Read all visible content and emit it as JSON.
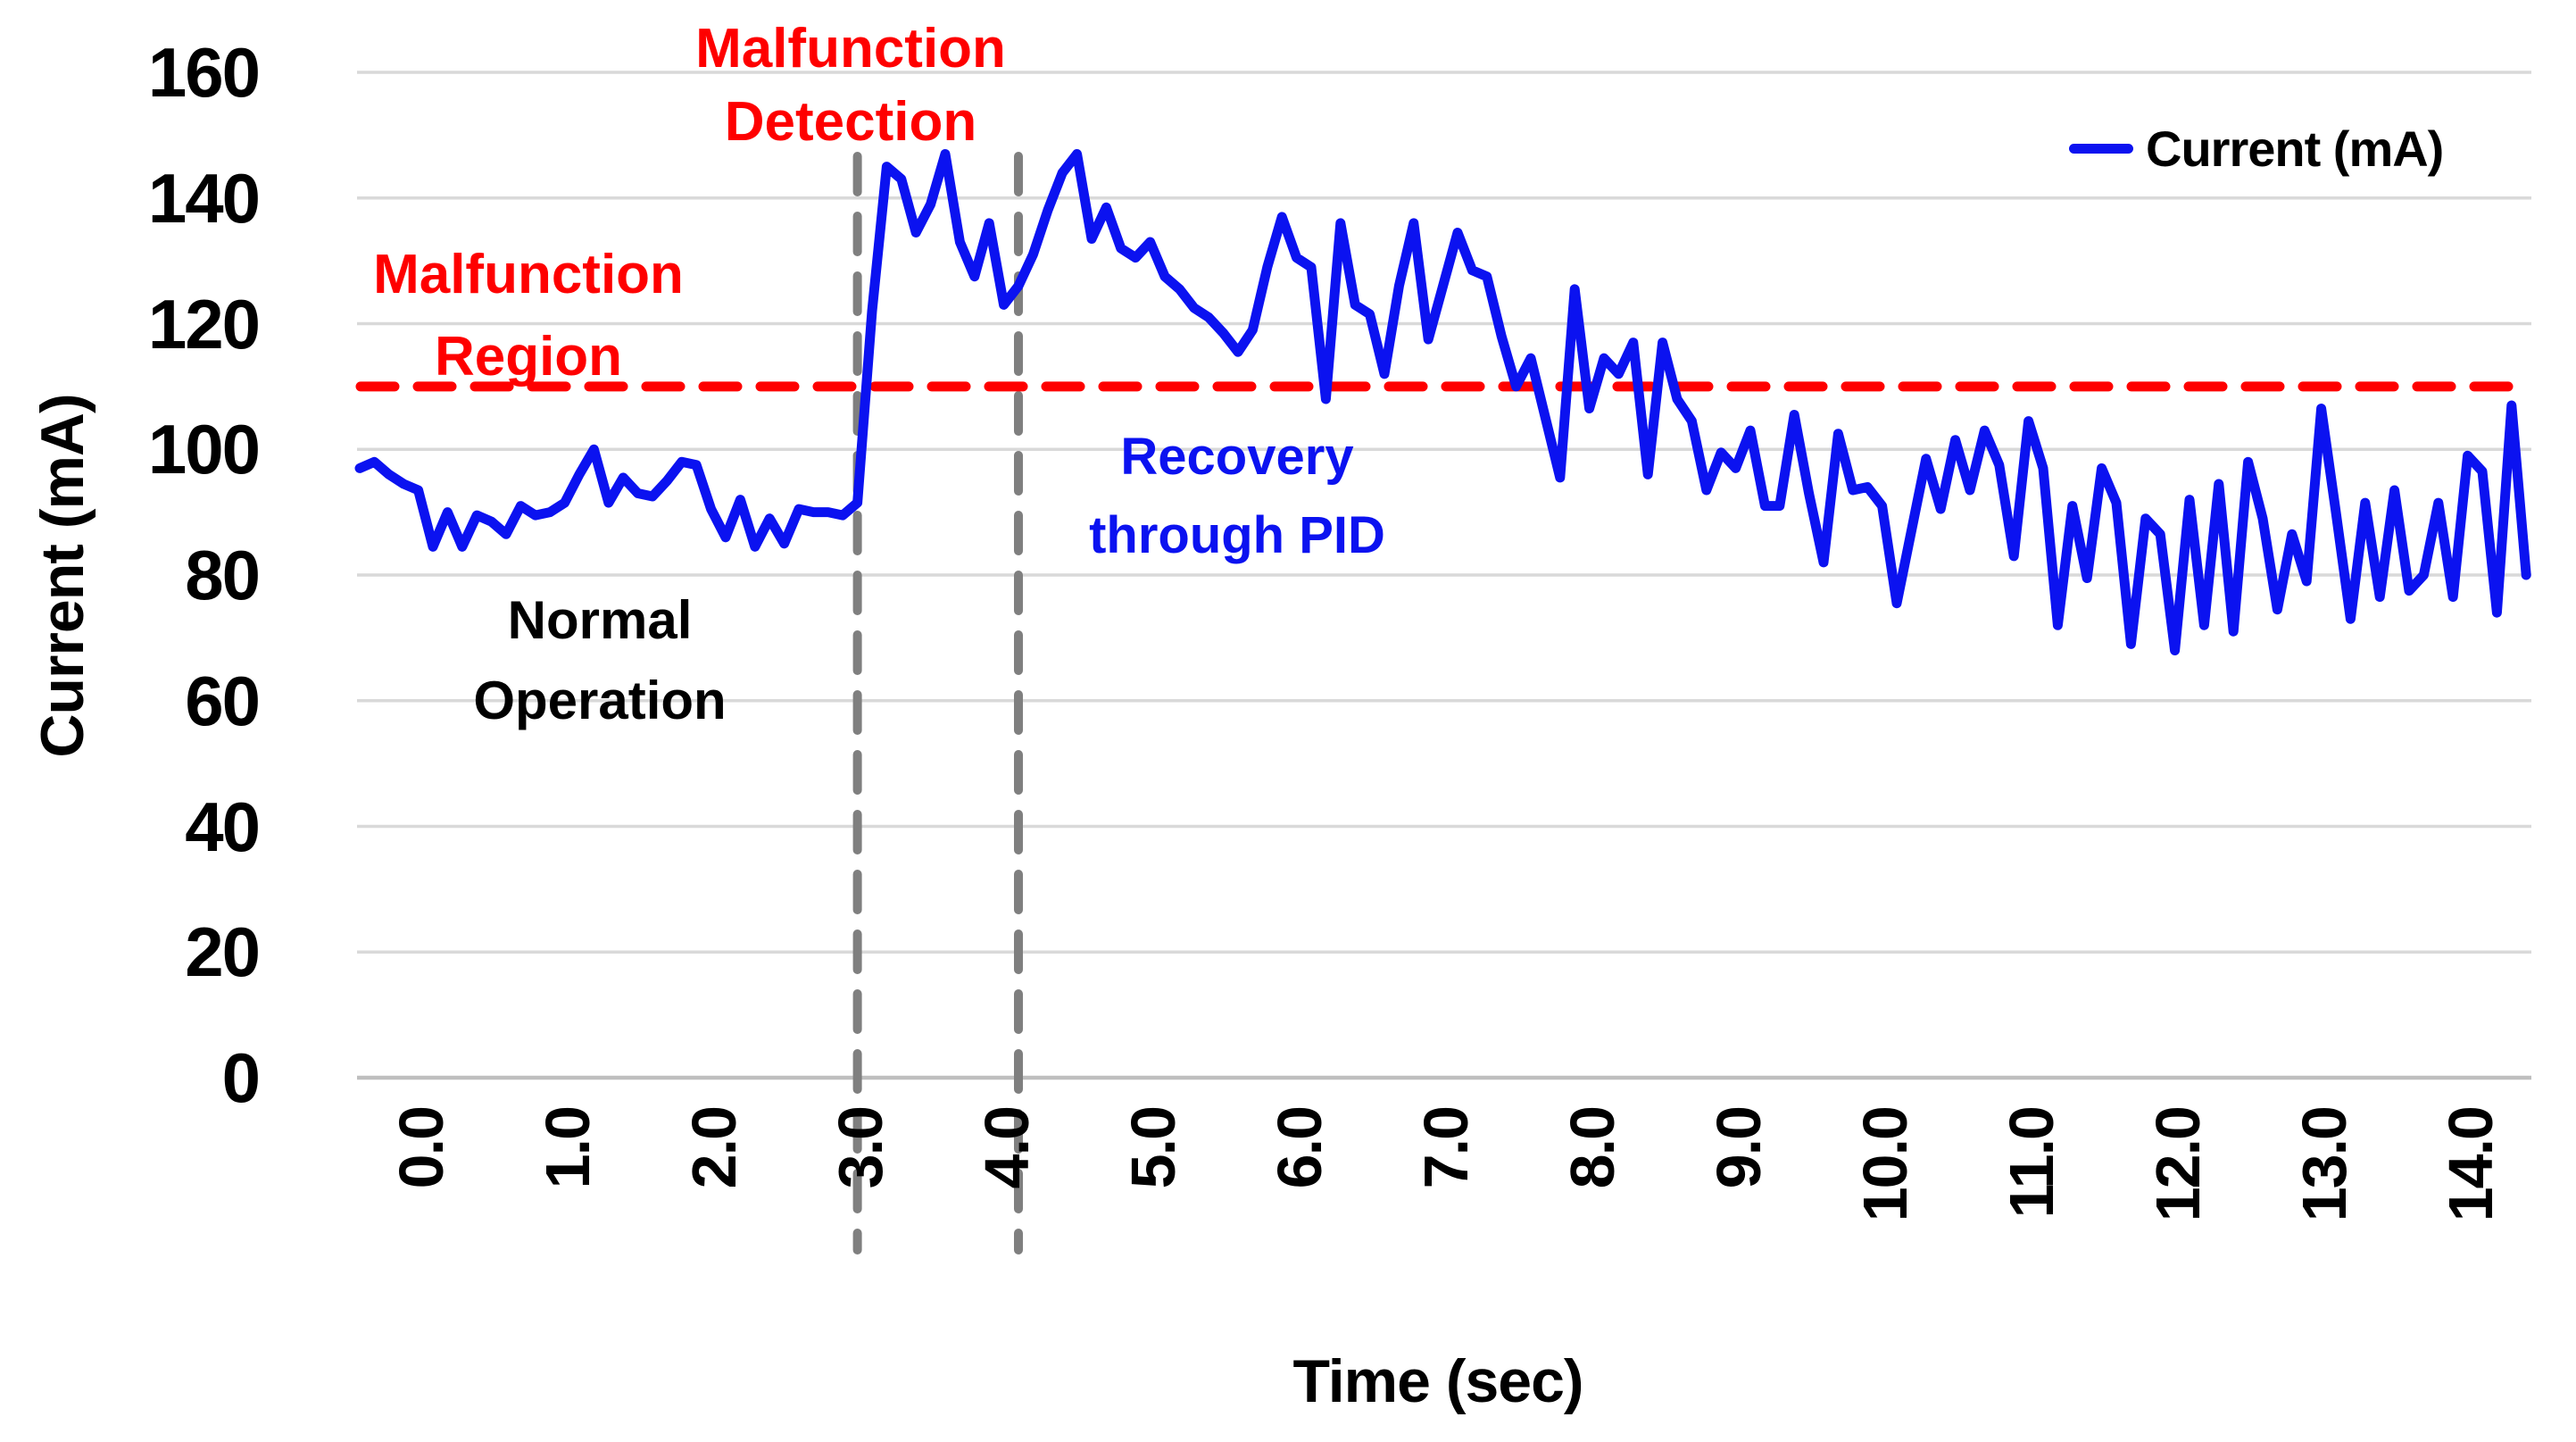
{
  "axes": {
    "x_title": "Time (sec)",
    "y_title": "Current (mA)"
  },
  "legend": {
    "label": "Current (mA)"
  },
  "annotations": {
    "malfunction_detection": [
      "Malfunction",
      "Detection"
    ],
    "malfunction_region": [
      "Malfunction",
      "Region"
    ],
    "normal_operation": [
      "Normal",
      "Operation"
    ],
    "recovery_pid": [
      "Recovery",
      "through PID"
    ]
  },
  "colors": {
    "series": "#0b12f0",
    "threshold": "#fe0000",
    "event_line": "#7f7f7f",
    "grid": "#d9d9d9",
    "axis": "#bfbfbf",
    "red_text": "#fe0000",
    "blue_text": "#0b12f0",
    "black_text": "#000000"
  },
  "chart_data": {
    "type": "line",
    "xlabel": "Time (sec)",
    "ylabel": "Current (mA)",
    "x_start": 0.0,
    "x_step": 0.1,
    "x_end": 14.8,
    "ylim": [
      0,
      160
    ],
    "xlim": [
      0,
      14.85
    ],
    "yticks": [
      0,
      20,
      40,
      60,
      80,
      100,
      120,
      140,
      160
    ],
    "xtick_labels": [
      "0.0",
      "1.0",
      "2.0",
      "3.0",
      "4.0",
      "5.0",
      "6.0",
      "7.0",
      "8.0",
      "9.0",
      "10.0",
      "11.0",
      "12.0",
      "13.0",
      "14.0"
    ],
    "xtick_values": [
      0,
      1,
      2,
      3,
      4,
      5,
      6,
      7,
      8,
      9,
      10,
      11,
      12,
      13,
      14
    ],
    "grid": "horizontal",
    "legend_position": "top-right",
    "series": [
      {
        "name": "Current (mA)",
        "values": [
          97,
          98,
          96,
          94.5,
          93.5,
          84.5,
          90,
          84.5,
          89.5,
          88.5,
          86.5,
          91,
          89.5,
          90,
          91.5,
          96,
          100,
          91.5,
          95.5,
          93,
          92.5,
          95,
          98,
          97.5,
          90.5,
          86,
          92,
          84.5,
          89,
          85,
          90.5,
          90,
          90,
          89.5,
          91.5,
          122,
          145,
          143,
          134.5,
          139,
          147,
          133,
          127.5,
          136,
          123,
          126,
          131,
          138,
          144,
          147,
          133.5,
          138.5,
          132,
          130.5,
          133,
          127.5,
          125.5,
          122.5,
          121,
          118.5,
          115.5,
          119,
          129,
          137,
          130.5,
          129,
          108,
          136,
          123,
          121.5,
          112,
          126,
          136,
          117.5,
          126,
          134.5,
          128.5,
          127.5,
          118,
          110,
          114.5,
          105,
          95.5,
          125.5,
          106.5,
          114.5,
          112,
          117,
          96,
          117,
          108,
          104.5,
          93.5,
          99.5,
          97,
          103,
          91,
          91,
          105.5,
          93,
          82,
          102.5,
          93.5,
          94,
          91,
          75.5,
          87,
          98.5,
          90.5,
          101.5,
          93.5,
          103,
          97.5,
          83,
          104.5,
          97,
          72,
          91,
          79.5,
          97,
          91.5,
          69,
          89,
          86.5,
          68,
          92,
          72,
          94.5,
          71,
          98,
          89,
          74.5,
          86.5,
          79,
          106.5,
          90,
          73,
          91.5,
          76.5,
          93.5,
          77.5,
          80,
          91.5,
          76.5,
          99,
          96.5,
          74,
          107,
          80
        ]
      }
    ],
    "reference_lines": {
      "threshold_y": 110,
      "event_x": [
        3.4,
        4.5
      ]
    }
  }
}
